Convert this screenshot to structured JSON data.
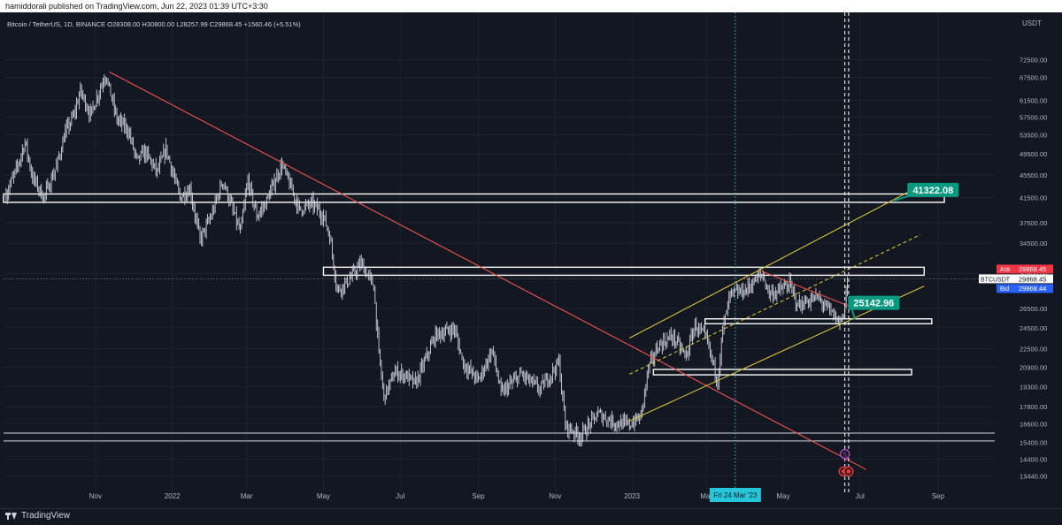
{
  "header": {
    "publisher": "hamiddorali published on TradingView.com, Jun 22, 2023 01:39 UTC+3:30",
    "legend": "Bitcoin / TetherUS, 1D, BINANCE  O28308.00  H30800.00  L28257.99  C29868.45  +1560.46 (+5.51%)"
  },
  "footer": {
    "brand": "TradingView",
    "logo_icon": "tradingview-logo-icon"
  },
  "chart_data": {
    "type": "candlestick",
    "symbol": "BTCUSDT",
    "currency": "USDT",
    "yscale": "log",
    "ylim": [
      13000,
      80000
    ],
    "price_ticks": [
      72500,
      67500,
      61500,
      57500,
      53500,
      49500,
      45500,
      41500,
      37500,
      34500,
      30500,
      26500,
      24500,
      22500,
      20900,
      19300,
      17800,
      16600,
      15400,
      14400,
      13440
    ],
    "price_tick_labels": [
      "72500.00",
      "67500.00",
      "61500.00",
      "57500.00",
      "53500.00",
      "49500.00",
      "45500.00",
      "41500.00",
      "37500.00",
      "34500.00",
      "30500.00",
      "26500.00",
      "24500.00",
      "22500.00",
      "20900.00",
      "19300.00",
      "17800.00",
      "16600.00",
      "15400.00",
      "14400.00",
      "13440.00"
    ],
    "time_labels": [
      {
        "date": "2021-11-01",
        "label": "Nov"
      },
      {
        "date": "2022-01-01",
        "label": "2022"
      },
      {
        "date": "2022-03-01",
        "label": "Mar"
      },
      {
        "date": "2022-05-01",
        "label": "May"
      },
      {
        "date": "2022-07-01",
        "label": "Jul"
      },
      {
        "date": "2022-09-01",
        "label": "Sep"
      },
      {
        "date": "2022-11-01",
        "label": "Nov"
      },
      {
        "date": "2023-01-01",
        "label": "2023"
      },
      {
        "date": "2023-03-01",
        "label": "Mar"
      },
      {
        "date": "2023-05-01",
        "label": "May"
      },
      {
        "date": "2023-07-01",
        "label": "Jul"
      },
      {
        "date": "2023-09-01",
        "label": "Sep"
      }
    ],
    "xlim": [
      "2021-08-20",
      "2023-10-16"
    ],
    "price_path": [
      [
        "2021-08-22",
        42000
      ],
      [
        "2021-08-31",
        47000
      ],
      [
        "2021-09-06",
        52000
      ],
      [
        "2021-09-12",
        45000
      ],
      [
        "2021-09-21",
        41500
      ],
      [
        "2021-10-01",
        47000
      ],
      [
        "2021-10-08",
        54000
      ],
      [
        "2021-10-15",
        58000
      ],
      [
        "2021-10-20",
        64000
      ],
      [
        "2021-10-28",
        58000
      ],
      [
        "2021-11-09",
        68500
      ],
      [
        "2021-11-18",
        57000
      ],
      [
        "2021-11-27",
        54500
      ],
      [
        "2021-12-04",
        48000
      ],
      [
        "2021-12-10",
        50000
      ],
      [
        "2021-12-20",
        46000
      ],
      [
        "2021-12-27",
        50500
      ],
      [
        "2022-01-07",
        41500
      ],
      [
        "2022-01-15",
        43000
      ],
      [
        "2022-01-23",
        35000
      ],
      [
        "2022-02-01",
        38500
      ],
      [
        "2022-02-10",
        44500
      ],
      [
        "2022-02-24",
        36000
      ],
      [
        "2022-03-02",
        44500
      ],
      [
        "2022-03-09",
        38500
      ],
      [
        "2022-03-16",
        40500
      ],
      [
        "2022-03-29",
        47500
      ],
      [
        "2022-04-12",
        39500
      ],
      [
        "2022-04-22",
        40500
      ],
      [
        "2022-05-01",
        38500
      ],
      [
        "2022-05-06",
        35500
      ],
      [
        "2022-05-12",
        28500
      ],
      [
        "2022-05-20",
        29500
      ],
      [
        "2022-05-31",
        31800
      ],
      [
        "2022-06-10",
        29000
      ],
      [
        "2022-06-14",
        22000
      ],
      [
        "2022-06-18",
        18500
      ],
      [
        "2022-06-27",
        20500
      ],
      [
        "2022-07-05",
        20200
      ],
      [
        "2022-07-13",
        19500
      ],
      [
        "2022-07-29",
        23800
      ],
      [
        "2022-08-13",
        24400
      ],
      [
        "2022-08-20",
        21200
      ],
      [
        "2022-09-01",
        19800
      ],
      [
        "2022-09-12",
        22400
      ],
      [
        "2022-09-19",
        18800
      ],
      [
        "2022-10-05",
        20300
      ],
      [
        "2022-10-20",
        19100
      ],
      [
        "2022-11-04",
        21300
      ],
      [
        "2022-11-09",
        16500
      ],
      [
        "2022-11-21",
        15800
      ],
      [
        "2022-12-05",
        17300
      ],
      [
        "2022-12-18",
        16700
      ],
      [
        "2022-12-30",
        16550
      ],
      [
        "2023-01-08",
        17100
      ],
      [
        "2023-01-14",
        20800
      ],
      [
        "2023-01-22",
        22800
      ],
      [
        "2023-02-02",
        23700
      ],
      [
        "2023-02-13",
        21800
      ],
      [
        "2023-02-20",
        24800
      ],
      [
        "2023-03-01",
        23400
      ],
      [
        "2023-03-10",
        19800
      ],
      [
        "2023-03-14",
        24300
      ],
      [
        "2023-03-20",
        28000
      ],
      [
        "2023-04-01",
        28500
      ],
      [
        "2023-04-14",
        30500
      ],
      [
        "2023-04-20",
        28200
      ],
      [
        "2023-04-26",
        28300
      ],
      [
        "2023-05-06",
        29200
      ],
      [
        "2023-05-13",
        26800
      ],
      [
        "2023-05-28",
        27700
      ],
      [
        "2023-06-10",
        25800
      ],
      [
        "2023-06-15",
        25000
      ],
      [
        "2023-06-19",
        26800
      ],
      [
        "2023-06-21",
        29868.45
      ]
    ],
    "horizontal_lines": [
      16000,
      15500
    ],
    "last_price_line": 29868.45,
    "zones": [
      {
        "from": "2021-08-20",
        "to": "2023-09-06",
        "low": 40700,
        "high": 42100
      },
      {
        "from": "2022-05-01",
        "to": "2023-08-21",
        "low": 30300,
        "high": 31300
      },
      {
        "from": "2023-02-28",
        "to": "2023-08-27",
        "low": 24900,
        "high": 25400
      },
      {
        "from": "2023-01-18",
        "to": "2023-08-11",
        "low": 20250,
        "high": 20700
      }
    ],
    "trendlines": [
      {
        "color": "#ef5350",
        "from": [
          "2021-11-12",
          69000
        ],
        "to": [
          "2023-07-06",
          13800
        ]
      },
      {
        "color": "#ef5350",
        "from": [
          "2023-04-14",
          30800
        ],
        "to": [
          "2023-06-23",
          26700
        ]
      },
      {
        "color": "#d4c23c",
        "dashed": false,
        "from": [
          "2022-12-30",
          23500
        ],
        "to": [
          "2023-08-21",
          43900
        ]
      },
      {
        "color": "#d4c23c",
        "dashed": true,
        "from": [
          "2022-12-30",
          20300
        ],
        "to": [
          "2023-08-18",
          35700
        ]
      },
      {
        "color": "#d4c23c",
        "dashed": false,
        "from": [
          "2022-12-30",
          16800
        ],
        "to": [
          "2023-08-21",
          29000
        ]
      }
    ],
    "vertical_lines": [
      {
        "date": "2023-03-24",
        "color": "#26c6da",
        "style": "dotted",
        "label": "Fri 24 Mar '23"
      },
      {
        "date": "2023-06-19",
        "color": "#ffffff",
        "style": "dashed"
      },
      {
        "date": "2023-06-22",
        "color": "#ffffff",
        "style": "dashed"
      }
    ],
    "annotations": [
      {
        "text": "41322.08",
        "date": "2023-08-28",
        "price": 42800,
        "pointer_to": [
          "2023-07-28",
          41000
        ]
      },
      {
        "text": "25142.96",
        "date": "2023-07-12",
        "price": 27100,
        "pointer_to": [
          "2023-06-27",
          25300
        ]
      }
    ],
    "price_labels": {
      "ask_label": "Ask",
      "ask_value": "29868.45",
      "symbol_value": "29868.45",
      "bid_label": "Bid",
      "bid_value": "29868.44"
    },
    "event_markers": [
      {
        "date": "2023-06-19",
        "price": 14700,
        "text": "5",
        "color": "#ab47bc"
      },
      {
        "date": "2023-06-18",
        "price": 13700,
        "text": "",
        "color": "#e53935"
      },
      {
        "date": "2023-06-22",
        "price": 13700,
        "text": "",
        "color": "#e53935"
      }
    ],
    "colors": {
      "background": "#131722",
      "candles": "#d1d4dc",
      "grid": "#1e222d",
      "axis_text": "#b2b5be",
      "annotation": "#089981",
      "ask": "#f23645",
      "bid": "#2962ff"
    }
  }
}
